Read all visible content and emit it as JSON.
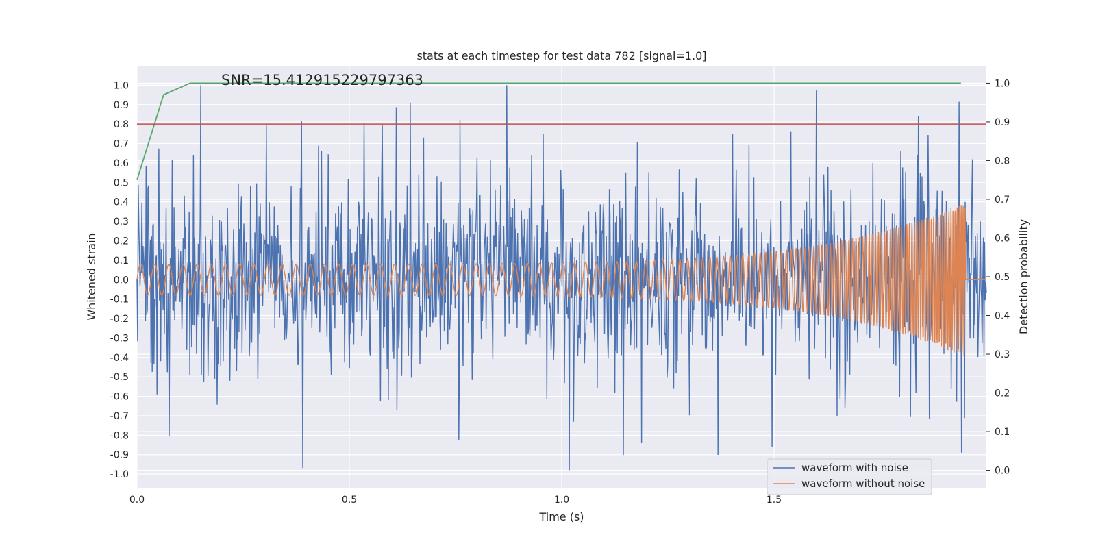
{
  "chart_data": {
    "type": "line",
    "title": "stats at each timestep for test data 782 [signal=1.0]",
    "xlabel": "Time (s)",
    "ylabel": "Whitened strain",
    "y2label": "Detection probability",
    "annotation": "SNR=15.412915229797363",
    "xlim": [
      0.0,
      2.0
    ],
    "ylim": [
      -1.07,
      1.1
    ],
    "y2lim": [
      -0.045,
      1.045
    ],
    "grid": true,
    "legend_position": "lower-right",
    "x_ticks": [
      "0.0",
      "0.5",
      "1.0",
      "1.5"
    ],
    "y_ticks": [
      "-1.0",
      "-0.9",
      "-0.8",
      "-0.7",
      "-0.6",
      "-0.5",
      "-0.4",
      "-0.3",
      "-0.2",
      "-0.1",
      "0.0",
      "0.1",
      "0.2",
      "0.3",
      "0.4",
      "0.5",
      "0.6",
      "0.7",
      "0.8",
      "0.9",
      "1.0"
    ],
    "y2_ticks": [
      "0.0",
      "0.1",
      "0.2",
      "0.3",
      "0.4",
      "0.5",
      "0.6",
      "0.7",
      "0.8",
      "0.9",
      "1.0"
    ],
    "series": [
      {
        "name": "waveform with noise",
        "axis": "left",
        "color": "#4c72b0",
        "style": "dense noisy strain, amplitude roughly within -0.98..1.0"
      },
      {
        "name": "waveform without noise",
        "axis": "left",
        "color": "#dd8452",
        "style": "chirp: ~0.08 amplitude at 0 s rising to ~0.4 at 1.95 s, then ends"
      },
      {
        "axis": "right",
        "color": "#55a868",
        "x": [
          0.0,
          0.0625,
          0.125,
          0.25,
          0.5,
          1.0,
          1.5,
          1.94
        ],
        "values": [
          0.75,
          0.97,
          1.0,
          1.0,
          1.0,
          1.0,
          1.0,
          1.0
        ]
      },
      {
        "axis": "left",
        "color": "#c44e52",
        "x": [
          0.0,
          2.0
        ],
        "values": [
          0.8,
          0.8
        ]
      }
    ]
  }
}
